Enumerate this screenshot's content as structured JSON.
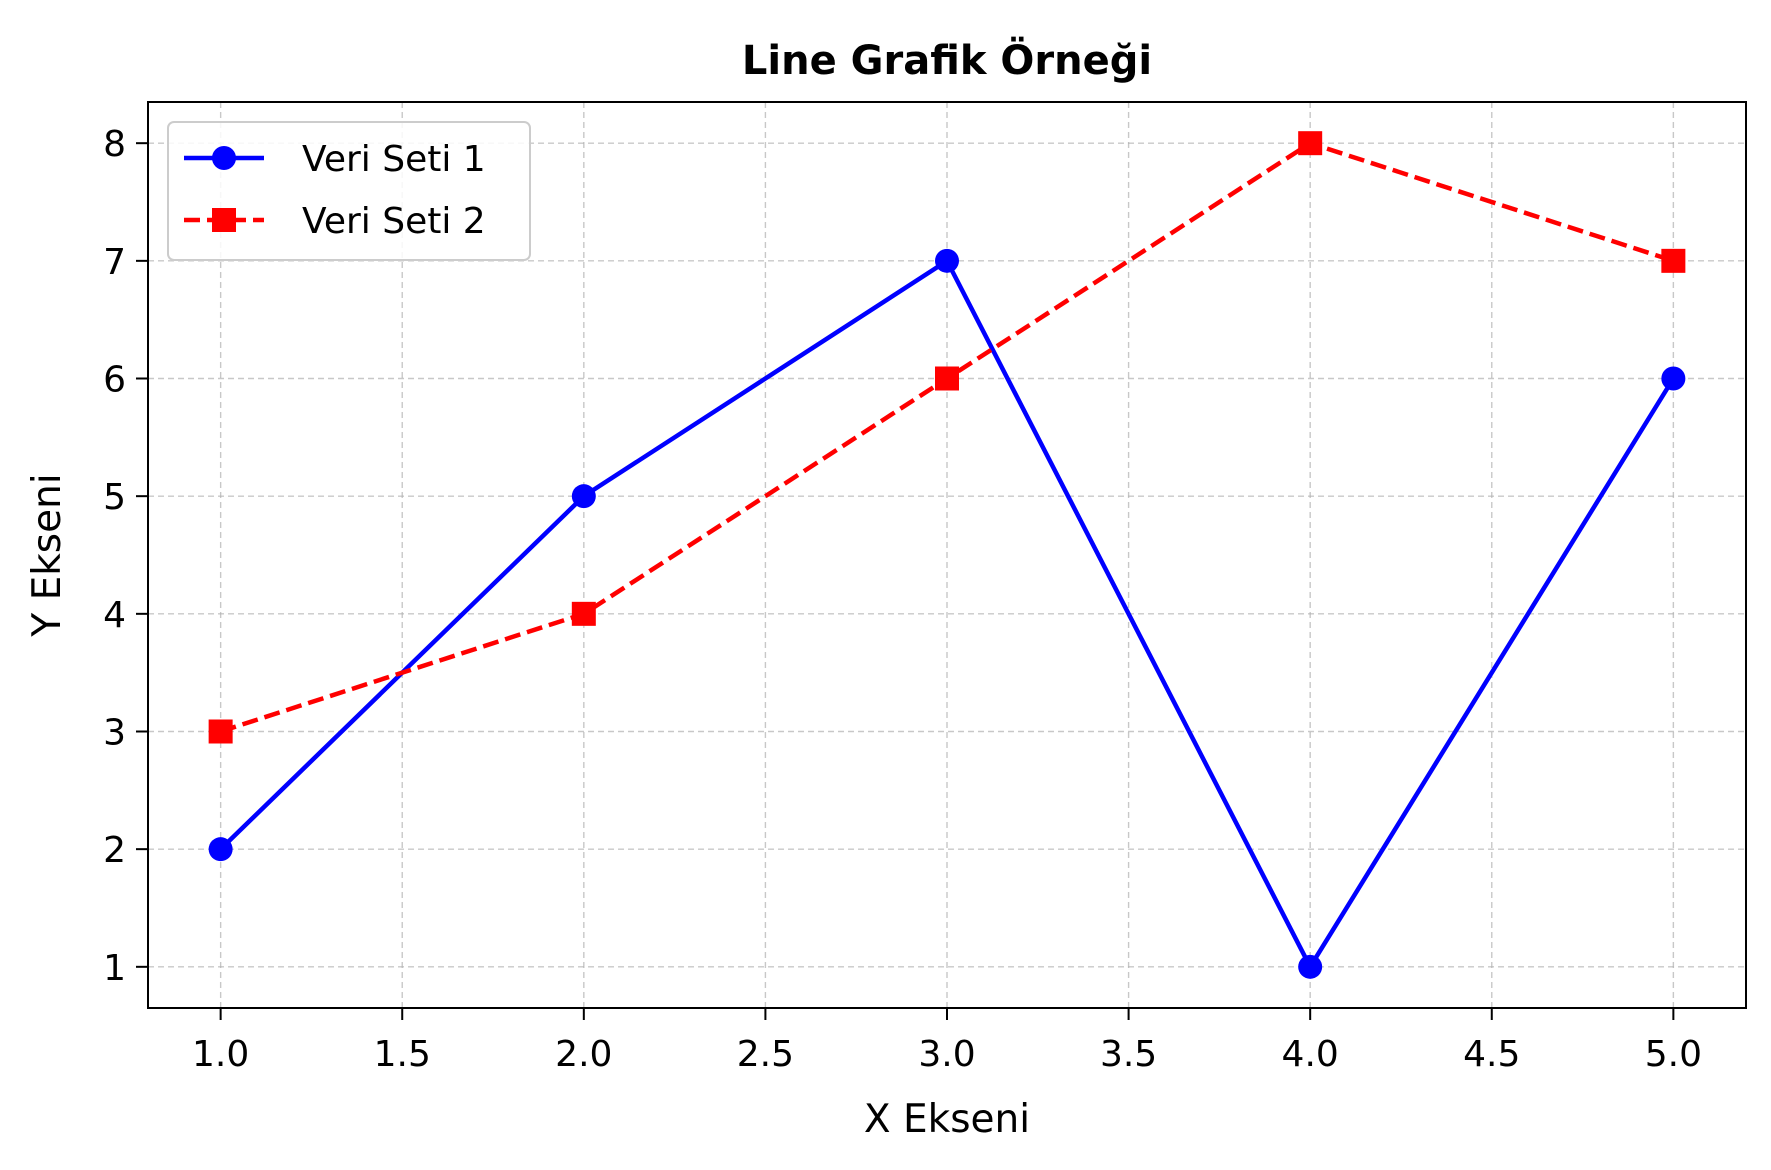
{
  "chart_data": {
    "type": "line",
    "title": "Line Grafik Örneği",
    "xlabel": "X Ekseni",
    "ylabel": "Y Ekseni",
    "xlim": [
      0.8,
      5.2
    ],
    "ylim": [
      0.65,
      8.35
    ],
    "xticks": [
      1.0,
      1.5,
      2.0,
      2.5,
      3.0,
      3.5,
      4.0,
      4.5,
      5.0
    ],
    "xtick_labels": [
      "1.0",
      "1.5",
      "2.0",
      "2.5",
      "3.0",
      "3.5",
      "4.0",
      "4.5",
      "5.0"
    ],
    "yticks": [
      1,
      2,
      3,
      4,
      5,
      6,
      7,
      8
    ],
    "ytick_labels": [
      "1",
      "2",
      "3",
      "4",
      "5",
      "6",
      "7",
      "8"
    ],
    "grid": true,
    "grid_style": "dashed",
    "legend_position": "upper-left",
    "x": [
      1,
      2,
      3,
      4,
      5
    ],
    "series": [
      {
        "name": "Veri Seti 1",
        "values": [
          2,
          5,
          7,
          1,
          6
        ],
        "color": "#0000ff",
        "line_style": "solid",
        "marker": "circle"
      },
      {
        "name": "Veri Seti 2",
        "values": [
          3,
          4,
          6,
          8,
          7
        ],
        "color": "#ff0000",
        "line_style": "dashed",
        "marker": "square"
      }
    ]
  }
}
